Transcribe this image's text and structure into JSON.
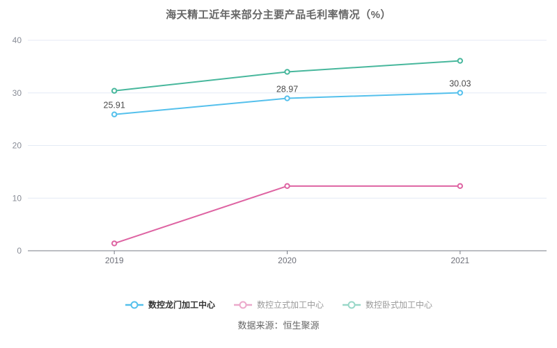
{
  "title": "海天精工近年来部分主要产品毛利率情况（%）",
  "source": "数据来源：恒生聚源",
  "chart_data": {
    "type": "line",
    "title": "海天精工近年来部分主要产品毛利率情况（%）",
    "categories": [
      "2019",
      "2020",
      "2021"
    ],
    "series": [
      {
        "name": "数控龙门加工中心",
        "color": "#54c0ec",
        "values": [
          25.91,
          28.97,
          30.03
        ],
        "point_labels": [
          "25.91",
          "28.97",
          "30.03"
        ],
        "legend_active": true
      },
      {
        "name": "数控立式加工中心",
        "color": "#de63a2",
        "values": [
          1.4,
          12.3,
          12.3
        ],
        "point_labels": null,
        "legend_active": false
      },
      {
        "name": "数控卧式加工中心",
        "color": "#47b79c",
        "values": [
          30.4,
          34.0,
          36.1
        ],
        "point_labels": null,
        "legend_active": false
      }
    ],
    "xlabel": "",
    "ylabel": "",
    "ylim": [
      0,
      40
    ],
    "yticks": [
      0,
      10,
      20,
      30,
      40
    ],
    "grid": true,
    "legend_position": "bottom",
    "colors": {
      "grid_line": "#e4eaf5",
      "axis_line": "#777b85",
      "y_tick_label": "#878b95",
      "x_tick_label": "#6e7079",
      "point_label": "#4c4c4c",
      "title": "#666666",
      "marker_fill": "#ffffff"
    }
  }
}
